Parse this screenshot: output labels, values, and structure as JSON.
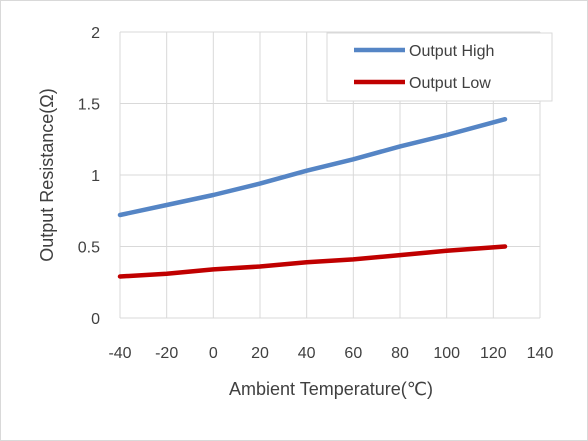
{
  "chart_data": {
    "type": "line",
    "title": "",
    "xlabel": "Ambient Temperature(℃)",
    "ylabel": "Output Resistance(Ω)",
    "xlim": [
      -40,
      140
    ],
    "ylim": [
      0,
      2
    ],
    "x_ticks": [
      "-40",
      "-20",
      "0",
      "20",
      "40",
      "60",
      "80",
      "100",
      "120",
      "140"
    ],
    "y_ticks": [
      "0",
      "0.5",
      "1",
      "1.5",
      "2"
    ],
    "grid": true,
    "legend_position": "top-right",
    "series": [
      {
        "name": "Output High",
        "color": "#5585c5",
        "x": [
          -40,
          -20,
          0,
          20,
          40,
          60,
          80,
          100,
          125
        ],
        "y": [
          0.72,
          0.79,
          0.86,
          0.94,
          1.03,
          1.11,
          1.2,
          1.28,
          1.39
        ]
      },
      {
        "name": "Output Low",
        "color": "#c00000",
        "x": [
          -40,
          -20,
          0,
          20,
          40,
          60,
          80,
          100,
          125
        ],
        "y": [
          0.29,
          0.31,
          0.34,
          0.36,
          0.39,
          0.41,
          0.44,
          0.47,
          0.5
        ]
      }
    ]
  }
}
